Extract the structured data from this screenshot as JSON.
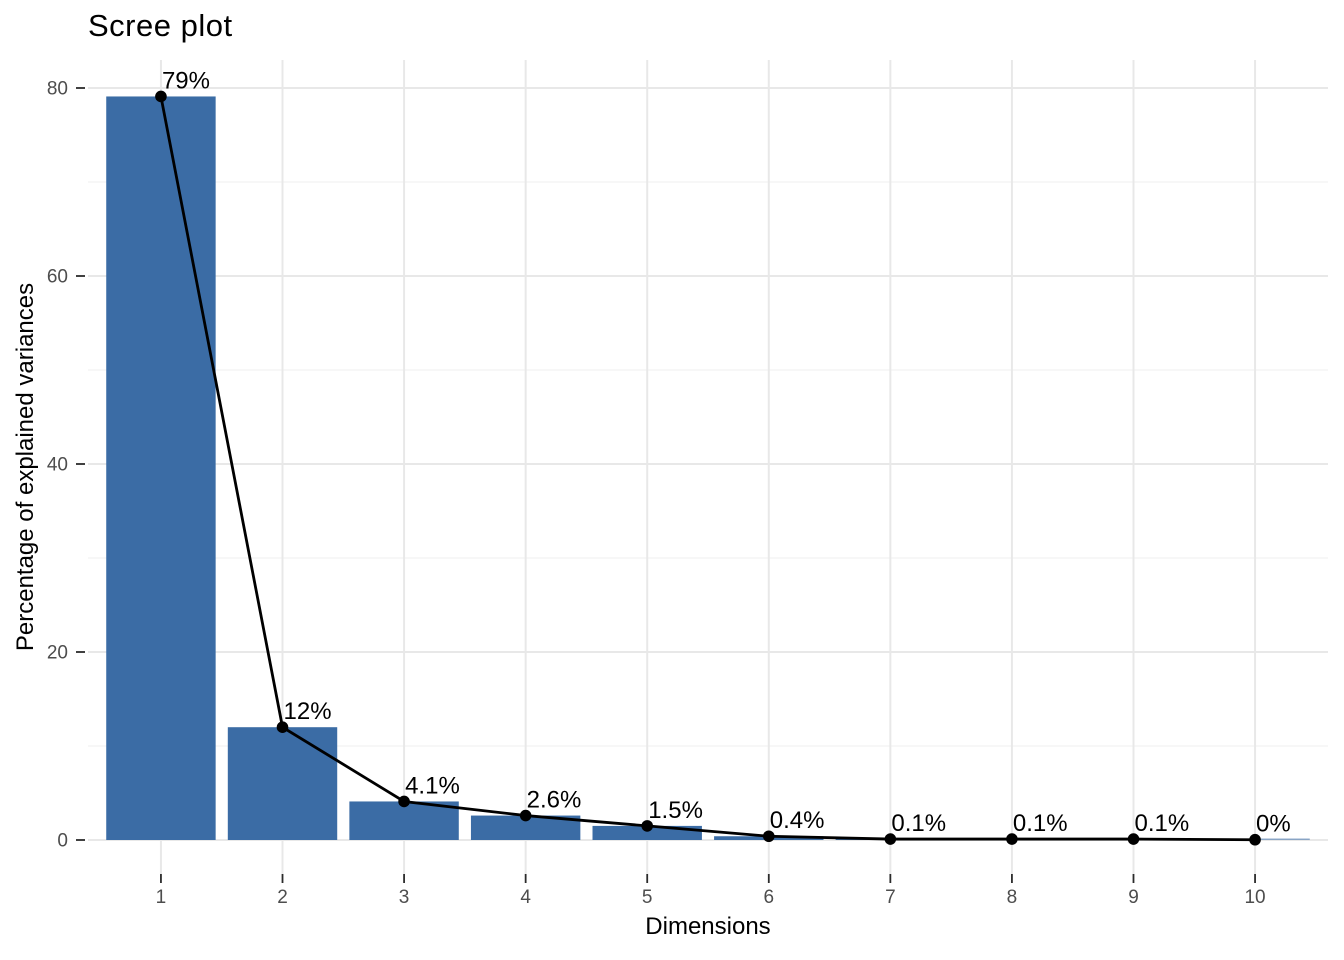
{
  "chart_data": {
    "type": "bar",
    "subtype": "bar-with-line-overlay",
    "title": "Scree plot",
    "xlabel": "Dimensions",
    "ylabel": "Percentage of explained variances",
    "categories": [
      "1",
      "2",
      "3",
      "4",
      "5",
      "6",
      "7",
      "8",
      "9",
      "10"
    ],
    "values": [
      79.1,
      12,
      4.1,
      2.6,
      1.5,
      0.4,
      0.1,
      0.1,
      0.1,
      0.03
    ],
    "point_labels": [
      "79%",
      "12%",
      "4.1%",
      "2.6%",
      "1.5%",
      "0.4%",
      "0.1%",
      "0.1%",
      "0.1%",
      "0%"
    ],
    "y_ticks": [
      0,
      20,
      40,
      60,
      80
    ],
    "y_minor_ticks": [
      10,
      30,
      50,
      70
    ],
    "ylim": [
      0,
      80
    ],
    "grid": true,
    "legend": "none",
    "colors": {
      "bar_fill": "#3B6CA5",
      "line": "#000000",
      "point": "#000000",
      "grid_major": "#E8E8E8",
      "grid_minor": "#F2F2F2",
      "tick_mark": "#2B2B2B",
      "tick_label": "#4D4D4D",
      "text": "#000000",
      "background": "#FFFFFF"
    }
  }
}
